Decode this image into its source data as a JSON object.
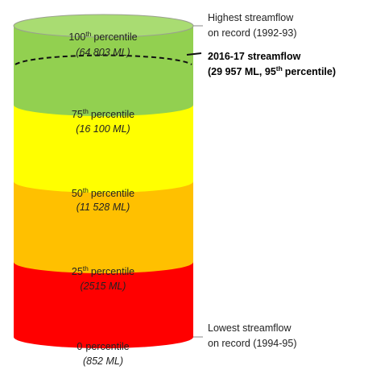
{
  "levels": [
    {
      "ordinal": "100",
      "sup": "th",
      "word": "percentile",
      "volume": "(64 803 ML)"
    },
    {
      "ordinal": "75",
      "sup": "th",
      "word": "percentile",
      "volume": "(16 100 ML)"
    },
    {
      "ordinal": "50",
      "sup": "th",
      "word": "percentile",
      "volume": "(11 528 ML)"
    },
    {
      "ordinal": "25",
      "sup": "th",
      "word": "percentile",
      "volume": "(2515 ML)"
    },
    {
      "ordinal": "0",
      "word": "percentile",
      "volume": "(852 ML)"
    }
  ],
  "annotations": {
    "highest": {
      "lines": [
        "Highest streamflow",
        "on record (1992-93)"
      ]
    },
    "current": {
      "line1": "2016-17 streamflow",
      "line2_start": "(29 957 ML, 95",
      "line2_sup": "th",
      "line2_end": "percentile)"
    },
    "lowest": {
      "lines": [
        "Lowest streamflow",
        "on record (1994-95)"
      ]
    }
  }
}
